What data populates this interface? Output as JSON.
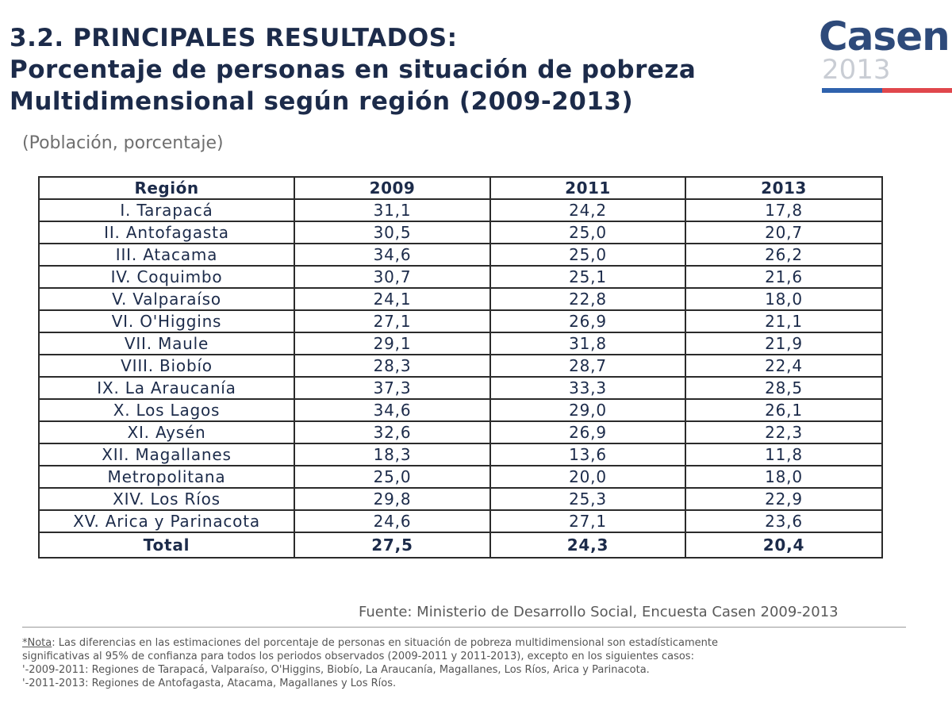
{
  "title": {
    "line1": "3.2. PRINCIPALES RESULTADOS:",
    "line2": "Porcentaje de personas en situación de pobreza",
    "line3": "Multidimensional según región (2009-2013)"
  },
  "logo": {
    "word": "Casen",
    "year": "2013",
    "colors": {
      "word": "#2e4a7a",
      "year": "#c9cdd4",
      "bar_left": "#2f62ad",
      "bar_right": "#e0474c"
    }
  },
  "subtitle": "(Población, porcentaje)",
  "table": {
    "headers": [
      "Región",
      "2009",
      "2011",
      "2013"
    ],
    "rows": [
      [
        "I. Tarapacá",
        "31,1",
        "24,2",
        "17,8"
      ],
      [
        "II. Antofagasta",
        "30,5",
        "25,0",
        "20,7"
      ],
      [
        "III. Atacama",
        "34,6",
        "25,0",
        "26,2"
      ],
      [
        "IV. Coquimbo",
        "30,7",
        "25,1",
        "21,6"
      ],
      [
        "V. Valparaíso",
        "24,1",
        "22,8",
        "18,0"
      ],
      [
        "VI. O'Higgins",
        "27,1",
        "26,9",
        "21,1"
      ],
      [
        "VII. Maule",
        "29,1",
        "31,8",
        "21,9"
      ],
      [
        "VIII. Biobío",
        "28,3",
        "28,7",
        "22,4"
      ],
      [
        "IX. La Araucanía",
        "37,3",
        "33,3",
        "28,5"
      ],
      [
        "X. Los Lagos",
        "34,6",
        "29,0",
        "26,1"
      ],
      [
        "XI. Aysén",
        "32,6",
        "26,9",
        "22,3"
      ],
      [
        "XII. Magallanes",
        "18,3",
        "13,6",
        "11,8"
      ],
      [
        "Metropolitana",
        "25,0",
        "20,0",
        "18,0"
      ],
      [
        "XIV. Los Ríos",
        "29,8",
        "25,3",
        "22,9"
      ],
      [
        "XV. Arica y Parinacota",
        "24,6",
        "27,1",
        "23,6"
      ]
    ],
    "total": [
      "Total",
      "27,5",
      "24,3",
      "20,4"
    ]
  },
  "source": "Fuente: Ministerio de Desarrollo Social, Encuesta Casen 2009-2013",
  "note": {
    "label": "*Nota",
    "line1_rest": ": Las diferencias en las estimaciones del porcentaje de personas en situación de pobreza multidimensional son estadísticamente",
    "line2": "significativas al 95% de confianza para todos los periodos observados (2009-2011 y 2011-2013), excepto en los siguientes casos:",
    "line3": "'-2009-2011: Regiones de Tarapacá, Valparaíso, O'Higgins, Biobío, La Araucanía, Magallanes, Los Ríos, Arica y Parinacota.",
    "line4": "'-2011-2013: Regiones de Antofagasta, Atacama, Magallanes y Los Ríos."
  }
}
